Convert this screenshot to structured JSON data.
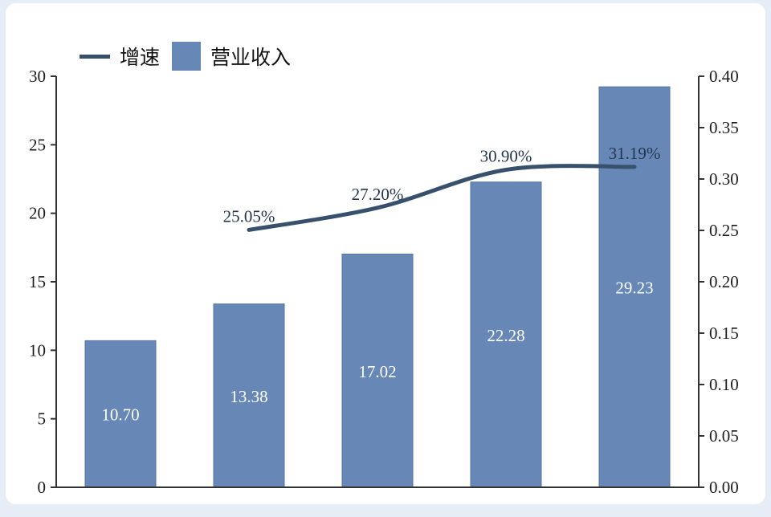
{
  "chart_data": {
    "type": "bar+line combo",
    "categories": [
      "",
      "",
      "",
      "",
      ""
    ],
    "series": [
      {
        "name": "营业收入",
        "type": "bar",
        "axis": "left",
        "values": [
          10.7,
          13.38,
          17.02,
          22.28,
          29.23
        ],
        "value_labels": [
          "10.70",
          "13.38",
          "17.02",
          "22.28",
          "29.23"
        ],
        "color": "#6787b7",
        "border_color": "#54749f",
        "label_color": "#ffffff"
      },
      {
        "name": "增速",
        "type": "line",
        "axis": "right",
        "values": [
          null,
          0.2505,
          0.272,
          0.309,
          0.3119
        ],
        "value_labels": [
          "25.05%",
          "27.20%",
          "30.90%",
          "31.19%"
        ],
        "color": "#37506b",
        "label_color": "#24364e"
      }
    ],
    "left_axis": {
      "min": 0,
      "max": 30,
      "step": 5,
      "tick_labels": [
        "0",
        "5",
        "10",
        "15",
        "20",
        "25",
        "30"
      ]
    },
    "right_axis": {
      "min": 0,
      "max": 0.4,
      "step": 0.05,
      "tick_labels": [
        "0.00",
        "0.05",
        "0.10",
        "0.15",
        "0.20",
        "0.25",
        "0.30",
        "0.35",
        "0.40"
      ]
    },
    "xlabel": "",
    "ylabel": "",
    "title": "",
    "grid": false,
    "legend_position": "top-left",
    "legend": [
      {
        "label": "增速",
        "swatch": "line"
      },
      {
        "label": "营业收入",
        "swatch": "box"
      }
    ],
    "axis_color": "#333333"
  }
}
